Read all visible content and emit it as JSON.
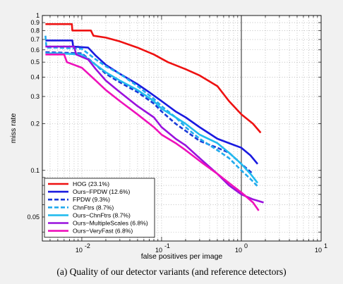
{
  "chart_data": {
    "type": "line",
    "title": "",
    "xlabel": "false positives per image",
    "ylabel": "miss rate",
    "x_scale": "log",
    "y_scale": "log",
    "xlim": [
      0.0032,
      10
    ],
    "ylim": [
      0.035,
      1
    ],
    "x_ticks": [
      {
        "value": 0.01,
        "base": "10",
        "exp": "-2"
      },
      {
        "value": 0.1,
        "base": "10",
        "exp": "-1"
      },
      {
        "value": 1,
        "base": "10",
        "exp": "0"
      },
      {
        "value": 10,
        "base": "10",
        "exp": "1"
      }
    ],
    "y_ticks": [
      {
        "value": 0.05,
        "label": "0.05"
      },
      {
        "value": 0.1,
        "label": "0.1"
      },
      {
        "value": 0.2,
        "label": "0.2"
      },
      {
        "value": 0.3,
        "label": "0.3"
      },
      {
        "value": 0.4,
        "label": "0.4"
      },
      {
        "value": 0.5,
        "label": "0.5"
      },
      {
        "value": 0.6,
        "label": "0.6"
      },
      {
        "value": 0.7,
        "label": "0.7"
      },
      {
        "value": 0.8,
        "label": "0.8"
      },
      {
        "value": 0.9,
        "label": "0.9"
      },
      {
        "value": 1,
        "label": "1"
      }
    ],
    "grid": true,
    "reference_line_x": 1,
    "legend_position": "bottom-left",
    "series": [
      {
        "name": "HOG (23.1%)",
        "color": "#ee1111",
        "dash": "solid",
        "points": [
          [
            0.0035,
            0.88
          ],
          [
            0.0075,
            0.88
          ],
          [
            0.0076,
            0.8
          ],
          [
            0.013,
            0.8
          ],
          [
            0.014,
            0.74
          ],
          [
            0.02,
            0.72
          ],
          [
            0.03,
            0.68
          ],
          [
            0.05,
            0.62
          ],
          [
            0.08,
            0.56
          ],
          [
            0.12,
            0.5
          ],
          [
            0.2,
            0.45
          ],
          [
            0.3,
            0.41
          ],
          [
            0.5,
            0.35
          ],
          [
            0.7,
            0.28
          ],
          [
            1.0,
            0.23
          ],
          [
            1.4,
            0.2
          ],
          [
            1.75,
            0.175
          ]
        ]
      },
      {
        "name": "Ours−FPDW (12.6%)",
        "color": "#1a1ae0",
        "dash": "solid",
        "points": [
          [
            0.0035,
            0.69
          ],
          [
            0.0076,
            0.69
          ],
          [
            0.0078,
            0.63
          ],
          [
            0.012,
            0.62
          ],
          [
            0.015,
            0.55
          ],
          [
            0.02,
            0.48
          ],
          [
            0.03,
            0.42
          ],
          [
            0.05,
            0.36
          ],
          [
            0.07,
            0.32
          ],
          [
            0.1,
            0.28
          ],
          [
            0.15,
            0.24
          ],
          [
            0.2,
            0.22
          ],
          [
            0.3,
            0.19
          ],
          [
            0.5,
            0.16
          ],
          [
            0.7,
            0.15
          ],
          [
            1.0,
            0.14
          ],
          [
            1.3,
            0.125
          ],
          [
            1.6,
            0.11
          ]
        ]
      },
      {
        "name": "FPDW (9.3%)",
        "color": "#1a3ad8",
        "dash": "dashed",
        "points": [
          [
            0.0035,
            0.58
          ],
          [
            0.01,
            0.57
          ],
          [
            0.015,
            0.48
          ],
          [
            0.02,
            0.42
          ],
          [
            0.03,
            0.37
          ],
          [
            0.05,
            0.32
          ],
          [
            0.08,
            0.27
          ],
          [
            0.1,
            0.24
          ],
          [
            0.15,
            0.2
          ],
          [
            0.2,
            0.18
          ],
          [
            0.3,
            0.155
          ],
          [
            0.5,
            0.14
          ],
          [
            0.7,
            0.13
          ],
          [
            1.0,
            0.11
          ],
          [
            1.4,
            0.095
          ]
        ]
      },
      {
        "name": "ChnFtrs (8.7%)",
        "color": "#22aaee",
        "dash": "dashed",
        "points": [
          [
            0.0035,
            0.74
          ],
          [
            0.0036,
            0.62
          ],
          [
            0.005,
            0.62
          ],
          [
            0.01,
            0.61
          ],
          [
            0.015,
            0.52
          ],
          [
            0.02,
            0.47
          ],
          [
            0.03,
            0.42
          ],
          [
            0.05,
            0.35
          ],
          [
            0.08,
            0.29
          ],
          [
            0.1,
            0.26
          ],
          [
            0.15,
            0.22
          ],
          [
            0.2,
            0.19
          ],
          [
            0.3,
            0.16
          ],
          [
            0.5,
            0.135
          ],
          [
            0.7,
            0.12
          ],
          [
            1.0,
            0.1
          ],
          [
            1.3,
            0.088
          ],
          [
            1.6,
            0.079
          ]
        ]
      },
      {
        "name": "Ours−ChnFtrs (8.7%)",
        "color": "#22bbee",
        "dash": "solid",
        "points": [
          [
            0.0035,
            0.57
          ],
          [
            0.005,
            0.57
          ],
          [
            0.01,
            0.56
          ],
          [
            0.015,
            0.48
          ],
          [
            0.02,
            0.43
          ],
          [
            0.03,
            0.38
          ],
          [
            0.05,
            0.33
          ],
          [
            0.08,
            0.28
          ],
          [
            0.1,
            0.25
          ],
          [
            0.15,
            0.22
          ],
          [
            0.2,
            0.2
          ],
          [
            0.3,
            0.17
          ],
          [
            0.5,
            0.15
          ],
          [
            0.7,
            0.13
          ],
          [
            1.0,
            0.11
          ],
          [
            1.3,
            0.095
          ],
          [
            1.6,
            0.083
          ]
        ]
      },
      {
        "name": "Ours−MultipleScales (6.8%)",
        "color": "#9911dd",
        "dash": "solid",
        "points": [
          [
            0.0035,
            0.63
          ],
          [
            0.008,
            0.63
          ],
          [
            0.0085,
            0.56
          ],
          [
            0.012,
            0.52
          ],
          [
            0.015,
            0.45
          ],
          [
            0.02,
            0.38
          ],
          [
            0.03,
            0.32
          ],
          [
            0.05,
            0.26
          ],
          [
            0.08,
            0.22
          ],
          [
            0.1,
            0.19
          ],
          [
            0.15,
            0.16
          ],
          [
            0.2,
            0.145
          ],
          [
            0.3,
            0.12
          ],
          [
            0.5,
            0.095
          ],
          [
            0.7,
            0.08
          ],
          [
            1.0,
            0.07
          ],
          [
            1.4,
            0.065
          ],
          [
            1.9,
            0.062
          ]
        ]
      },
      {
        "name": "Ours−VeryFast (6.8%)",
        "color": "#ee11bb",
        "dash": "solid",
        "points": [
          [
            0.0035,
            0.56
          ],
          [
            0.006,
            0.56
          ],
          [
            0.0065,
            0.5
          ],
          [
            0.01,
            0.46
          ],
          [
            0.015,
            0.38
          ],
          [
            0.02,
            0.33
          ],
          [
            0.03,
            0.28
          ],
          [
            0.05,
            0.23
          ],
          [
            0.08,
            0.19
          ],
          [
            0.1,
            0.17
          ],
          [
            0.15,
            0.15
          ],
          [
            0.2,
            0.135
          ],
          [
            0.3,
            0.115
          ],
          [
            0.5,
            0.095
          ],
          [
            0.7,
            0.083
          ],
          [
            1.0,
            0.072
          ],
          [
            1.4,
            0.062
          ],
          [
            1.65,
            0.055
          ]
        ]
      }
    ]
  },
  "caption": "(a) Quality of our detector variants (and reference detectors)"
}
